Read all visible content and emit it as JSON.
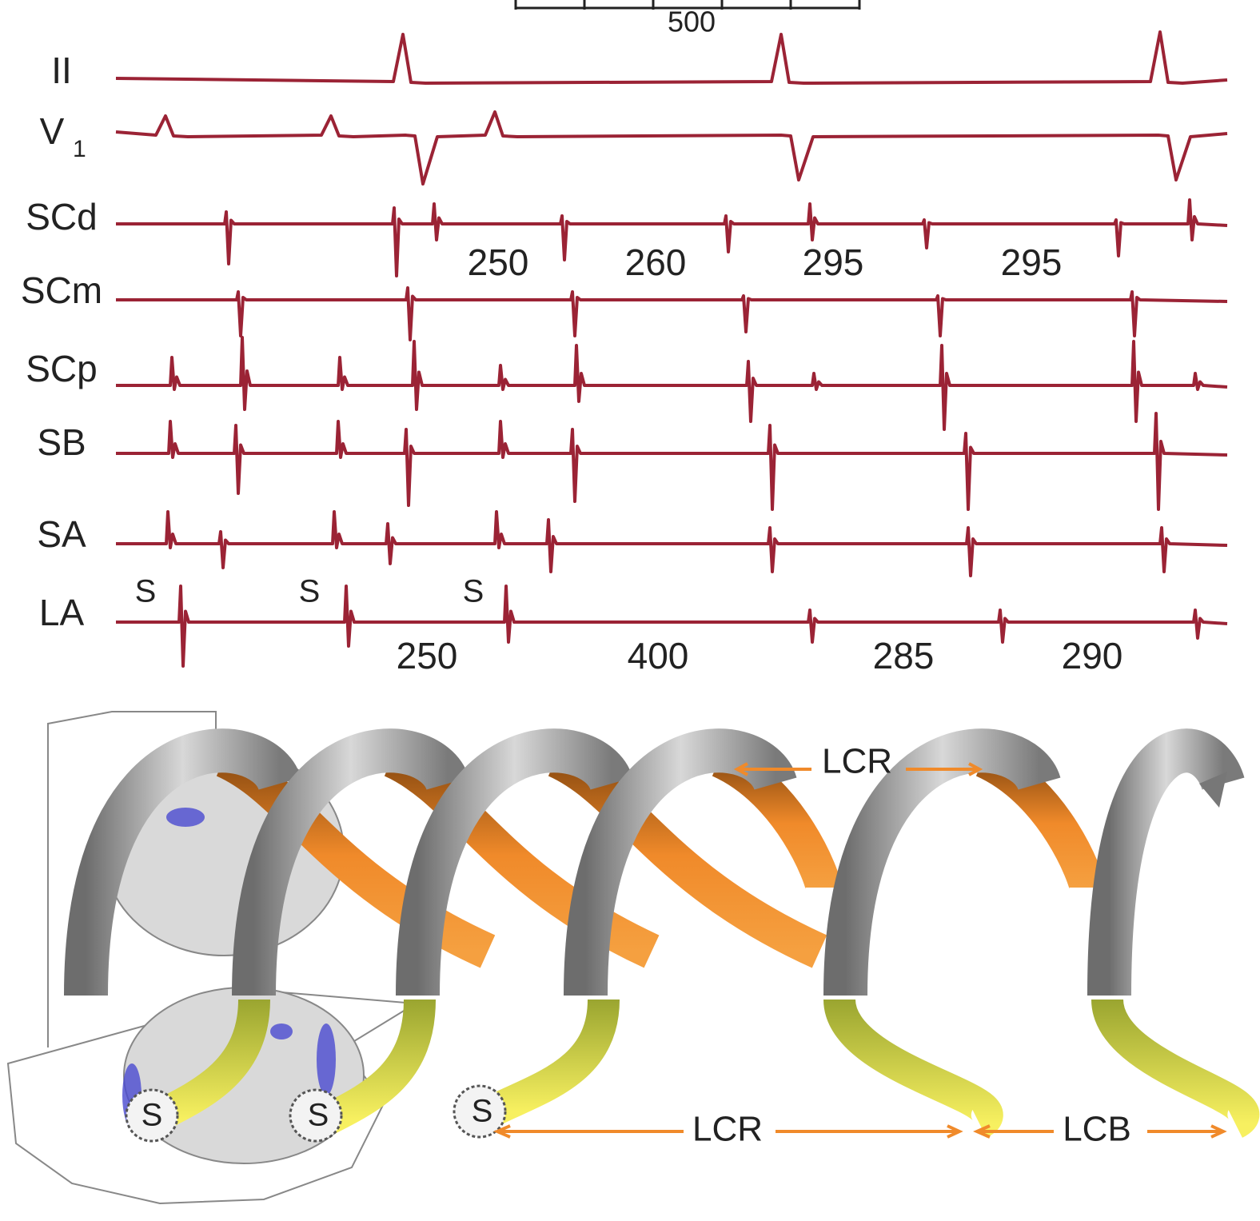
{
  "scale": {
    "label": 500
  },
  "leads": [
    {
      "label": "II"
    },
    {
      "label": "V",
      "subscript": "1"
    },
    {
      "label": "SCd"
    },
    {
      "label": "SCm"
    },
    {
      "label": "SCp"
    },
    {
      "label": "SB"
    },
    {
      "label": "SA"
    },
    {
      "label": "LA"
    }
  ],
  "stim_labels": [
    "S",
    "S",
    "S"
  ],
  "intervals_scd": [
    250,
    260,
    295,
    295
  ],
  "intervals_la": [
    250,
    400,
    285,
    290
  ],
  "diagram": {
    "top_label": "LCR",
    "bottom_labels": [
      "LCR",
      "LCB"
    ],
    "pacing_labels": [
      "S",
      "S",
      "S"
    ]
  }
}
